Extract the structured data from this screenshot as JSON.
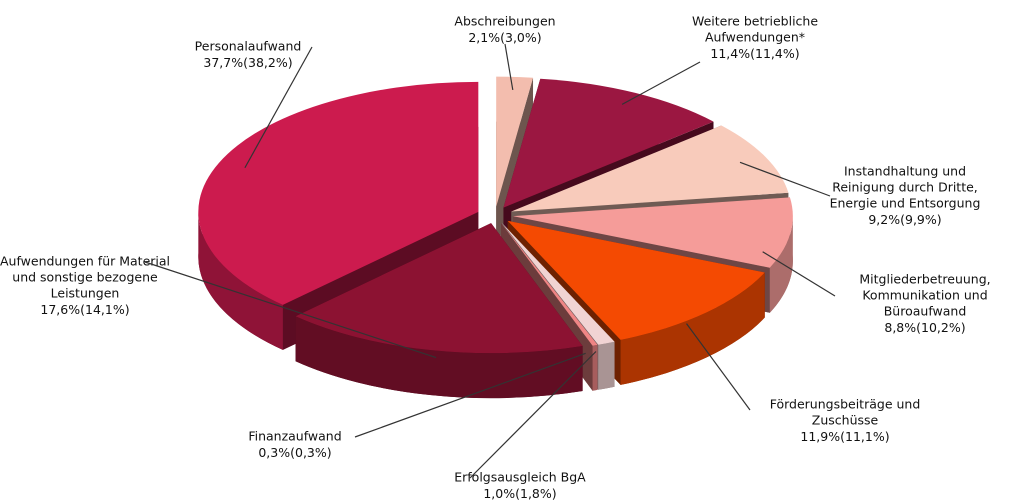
{
  "chart_data": {
    "type": "pie",
    "categories": [
      [
        "Abschreibungen"
      ],
      [
        "Weitere betriebliche",
        "Aufwendungen*"
      ],
      [
        "Instandhaltung und",
        "Reinigung durch Dritte,",
        "Energie und Entsorgung"
      ],
      [
        "Mitgliederbetreuung,",
        "Kommunikation  und",
        "Büroaufwand"
      ],
      [
        "Förderungsbeiträge und",
        "Zuschüsse"
      ],
      [
        "Erfolgsausgleich BgA"
      ],
      [
        "Finanzaufwand"
      ],
      [
        "Aufwendungen für Material",
        "und sonstige bezogene",
        "Leistungen"
      ],
      [
        "Personalaufwand"
      ]
    ],
    "values": [
      2.1,
      11.4,
      9.2,
      8.8,
      11.9,
      1.0,
      0.3,
      17.6,
      37.7
    ],
    "value_labels": [
      "2,1%",
      "11,4%",
      "9,2%",
      "8,8%",
      "11,9%",
      "1,0%",
      "0,3%",
      "17,6%",
      "37,7%"
    ],
    "prior_values": [
      3.0,
      11.4,
      9.9,
      10.2,
      11.1,
      1.8,
      0.3,
      14.1,
      38.2
    ],
    "prior_value_labels": [
      "(3,0%)",
      "(11,4%)",
      "(9,9%)",
      "(10,2%)",
      "(11,1%)",
      "(1,8%)",
      "(0,3%)",
      "(14,1%)",
      "(38,2%)"
    ],
    "colors": [
      "#f3bdae",
      "#9b1741",
      "#f8cbbb",
      "#f59c99",
      "#f44a02",
      "#f1d3d3",
      "#ef8585",
      "#8c1232",
      "#cc1b4e"
    ]
  }
}
